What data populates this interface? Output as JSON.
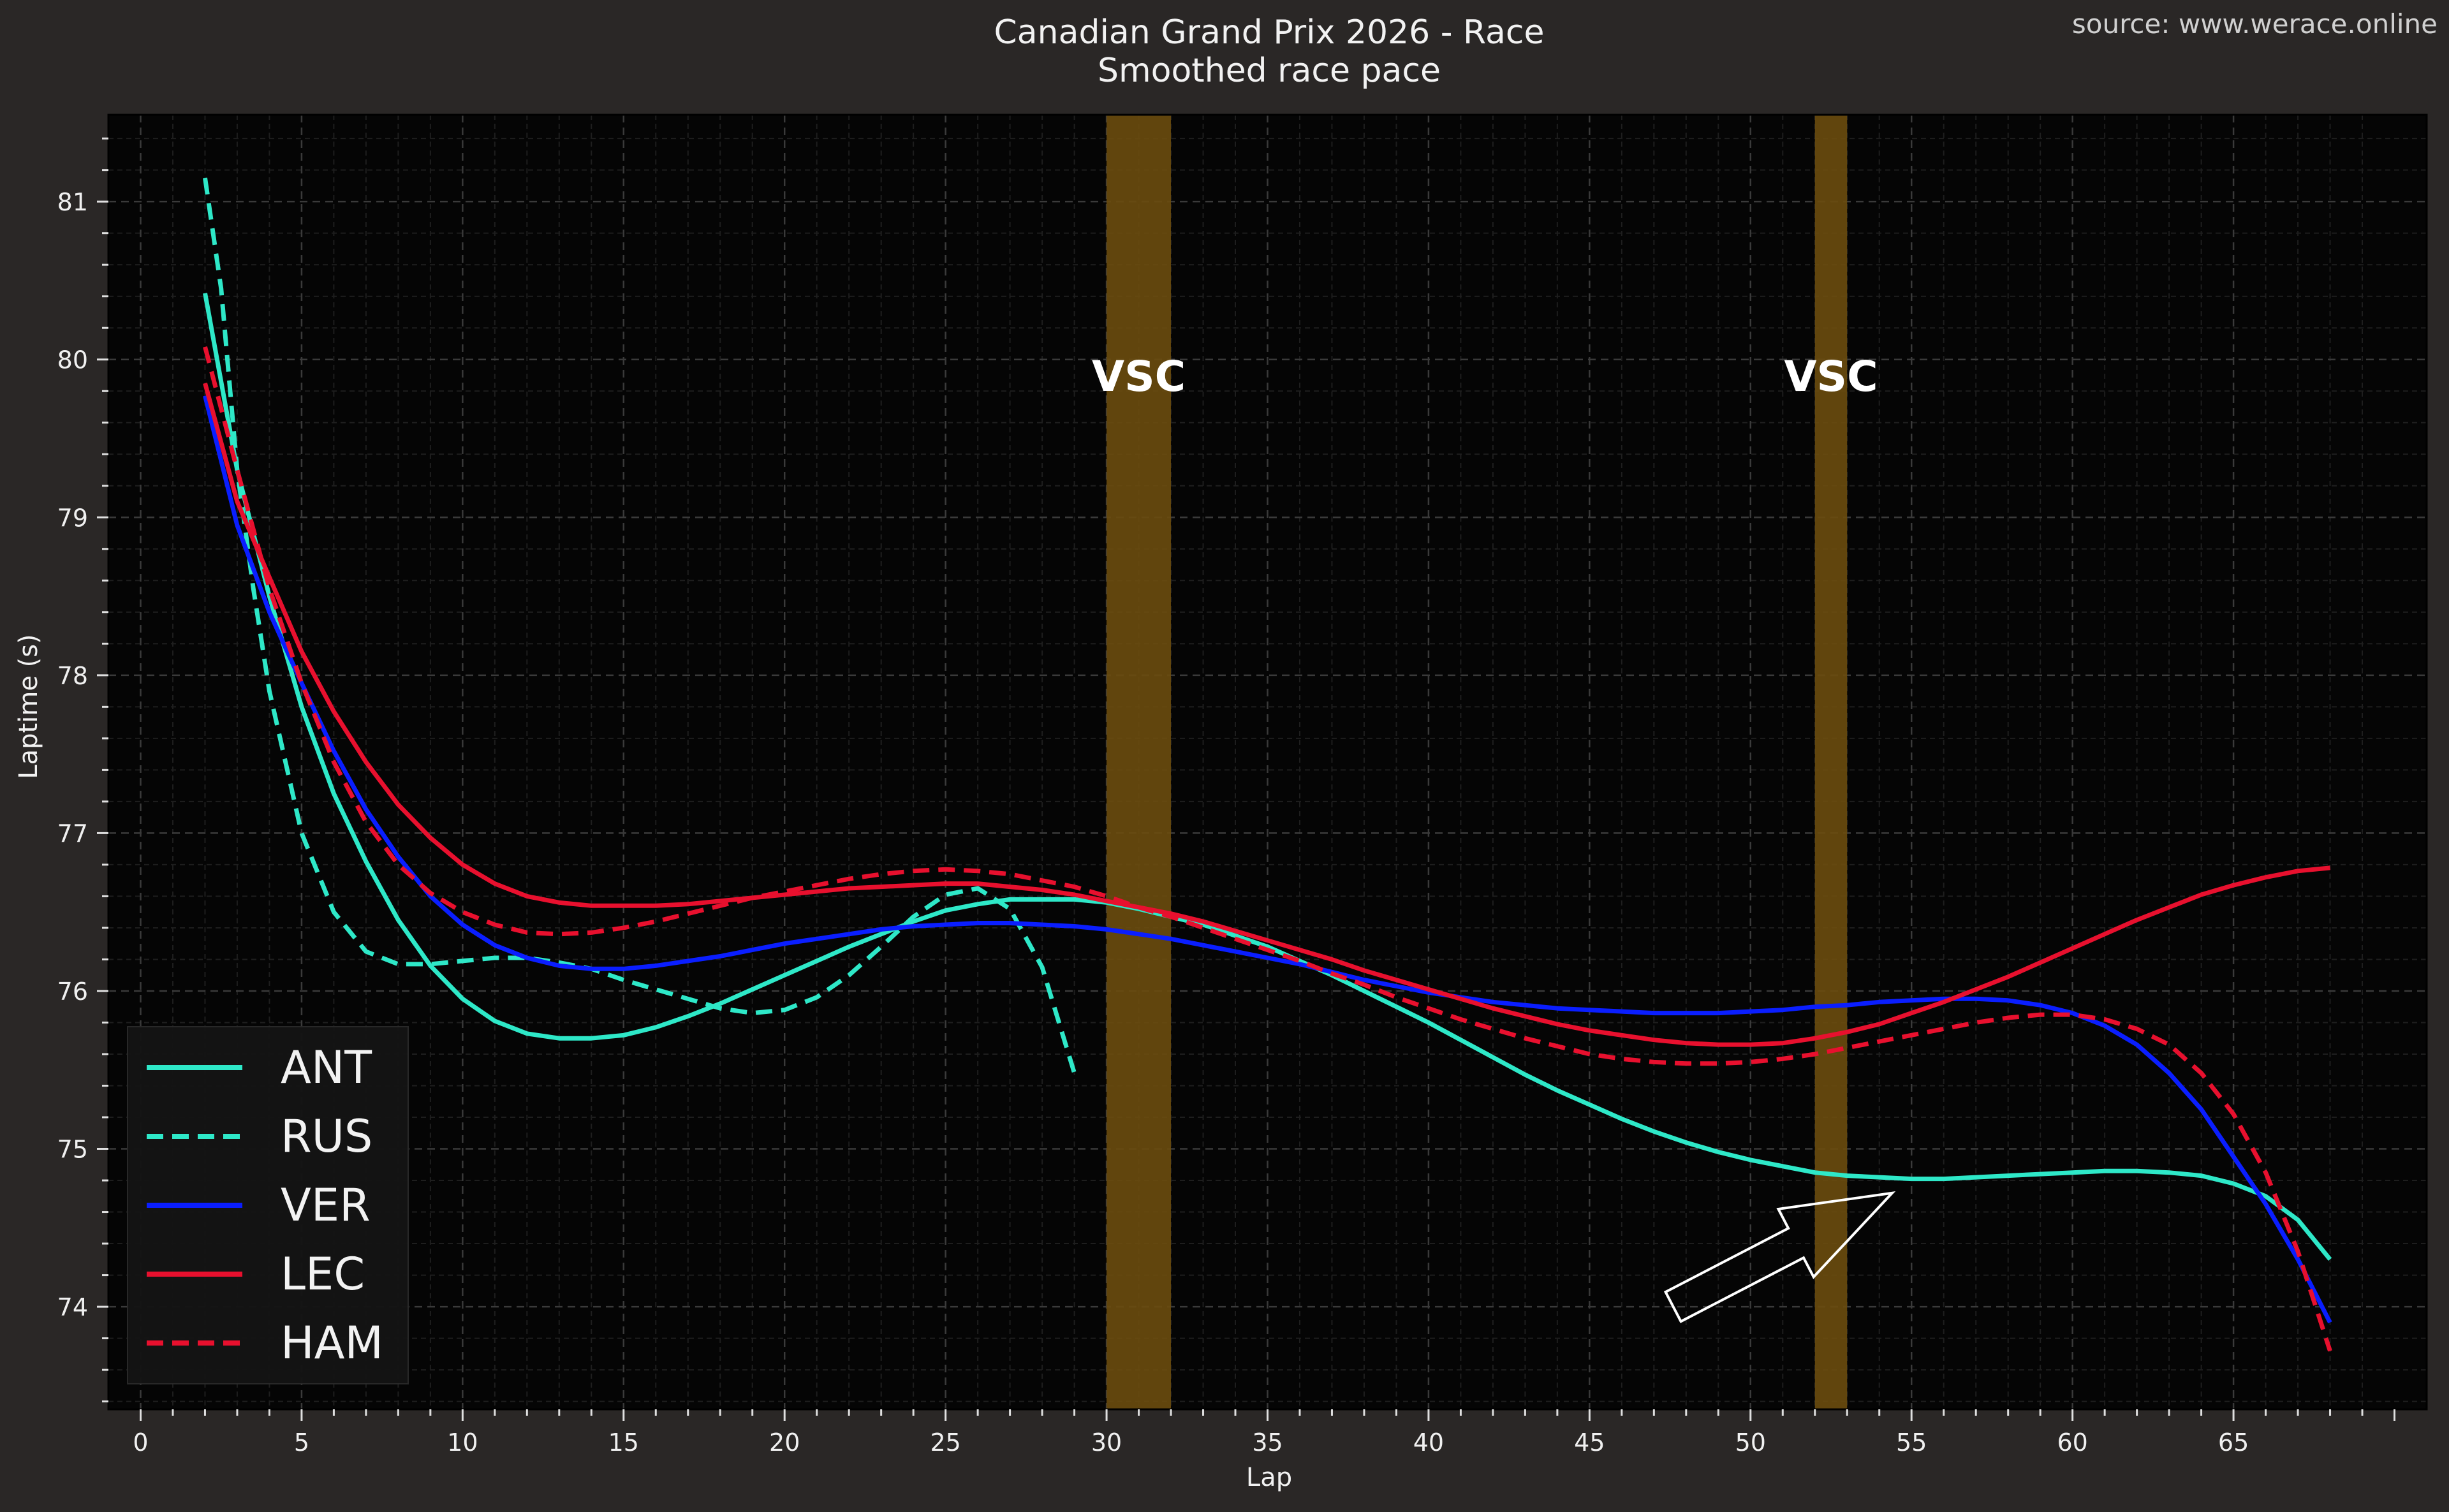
{
  "chart_data": {
    "type": "line",
    "title": "Canadian Grand Prix 2026 - Race",
    "subtitle": "Smoothed race pace",
    "source": "source: www.werace.online",
    "xlabel": "Lap",
    "ylabel": "Laptime (s)",
    "xlim": [
      -1,
      71
    ],
    "ylim": [
      73.35,
      81.55
    ],
    "xticks": [
      0,
      5,
      10,
      15,
      20,
      25,
      30,
      35,
      40,
      45,
      50,
      55,
      60,
      65
    ],
    "yticks": [
      74,
      75,
      76,
      77,
      78,
      79,
      80,
      81
    ],
    "grid": true,
    "legend_position": "lower-left",
    "vsc_periods": [
      {
        "label": "VSC",
        "x_start": 30,
        "x_end": 32
      },
      {
        "label": "VSC",
        "x_start": 52,
        "x_end": 53
      }
    ],
    "annotation": {
      "type": "arrow",
      "from": [
        47.6,
        74.0
      ],
      "to": [
        54.4,
        74.72
      ]
    },
    "colors": {
      "background": "#2a2726",
      "plot_background": "#050505",
      "vsc": "#6b4c0e",
      "grid": "#3a3a3a"
    },
    "series": [
      {
        "name": "ANT",
        "color": "#2ee8c8",
        "dashed": false,
        "x": [
          2,
          3,
          4,
          5,
          6,
          7,
          8,
          9,
          10,
          11,
          12,
          13,
          14,
          15,
          16,
          17,
          18,
          19,
          20,
          21,
          22,
          23,
          24,
          25,
          26,
          27,
          28,
          29,
          30,
          31,
          32,
          33,
          34,
          35,
          36,
          37,
          38,
          39,
          40,
          41,
          42,
          43,
          44,
          45,
          46,
          47,
          48,
          49,
          50,
          51,
          52,
          53,
          54,
          55,
          56,
          57,
          58,
          59,
          60,
          61,
          62,
          63,
          64,
          65,
          66,
          67,
          68
        ],
        "y": [
          80.42,
          79.3,
          78.5,
          77.8,
          77.25,
          76.82,
          76.45,
          76.16,
          75.95,
          75.81,
          75.73,
          75.7,
          75.7,
          75.72,
          75.77,
          75.84,
          75.92,
          76.01,
          76.1,
          76.19,
          76.28,
          76.36,
          76.44,
          76.51,
          76.55,
          76.58,
          76.58,
          76.58,
          76.56,
          76.52,
          76.47,
          76.42,
          76.35,
          76.28,
          76.19,
          76.1,
          76.0,
          75.9,
          75.8,
          75.69,
          75.58,
          75.47,
          75.37,
          75.28,
          75.19,
          75.11,
          75.04,
          74.98,
          74.93,
          74.89,
          74.85,
          74.83,
          74.82,
          74.81,
          74.81,
          74.82,
          74.83,
          74.84,
          74.85,
          74.86,
          74.86,
          74.85,
          74.83,
          74.78,
          74.7,
          74.55,
          74.3
        ]
      },
      {
        "name": "RUS",
        "color": "#2ee8c8",
        "dashed": true,
        "x": [
          2,
          2.5,
          3,
          3.5,
          4,
          5,
          6,
          7,
          8,
          9,
          10,
          11,
          12,
          13,
          14,
          15,
          16,
          17,
          18,
          19,
          20,
          21,
          22,
          23,
          24,
          25,
          26,
          27,
          28,
          29
        ],
        "y": [
          81.15,
          80.45,
          79.3,
          78.55,
          77.9,
          77.0,
          76.5,
          76.25,
          76.17,
          76.17,
          76.19,
          76.21,
          76.21,
          76.18,
          76.14,
          76.07,
          76.01,
          75.95,
          75.89,
          75.86,
          75.88,
          75.96,
          76.1,
          76.28,
          76.47,
          76.61,
          76.65,
          76.52,
          76.15,
          75.48
        ]
      },
      {
        "name": "VER",
        "color": "#0a1eff",
        "dashed": false,
        "x": [
          2,
          3,
          4,
          5,
          6,
          7,
          8,
          9,
          10,
          11,
          12,
          13,
          14,
          15,
          16,
          17,
          18,
          19,
          20,
          21,
          22,
          23,
          24,
          25,
          26,
          27,
          28,
          29,
          30,
          31,
          32,
          33,
          34,
          35,
          36,
          37,
          38,
          39,
          40,
          41,
          42,
          43,
          44,
          45,
          46,
          47,
          48,
          49,
          50,
          51,
          52,
          53,
          54,
          55,
          56,
          57,
          58,
          59,
          60,
          61,
          62,
          63,
          64,
          65,
          66,
          67,
          68
        ],
        "y": [
          79.77,
          78.95,
          78.4,
          77.95,
          77.52,
          77.15,
          76.85,
          76.6,
          76.42,
          76.29,
          76.21,
          76.16,
          76.14,
          76.14,
          76.16,
          76.19,
          76.22,
          76.26,
          76.3,
          76.33,
          76.36,
          76.39,
          76.41,
          76.42,
          76.43,
          76.43,
          76.42,
          76.41,
          76.39,
          76.36,
          76.33,
          76.29,
          76.25,
          76.21,
          76.17,
          76.12,
          76.07,
          76.03,
          75.99,
          75.96,
          75.93,
          75.91,
          75.89,
          75.88,
          75.87,
          75.86,
          75.86,
          75.86,
          75.87,
          75.88,
          75.9,
          75.91,
          75.93,
          75.94,
          75.95,
          75.95,
          75.94,
          75.91,
          75.86,
          75.78,
          75.66,
          75.48,
          75.25,
          74.95,
          74.65,
          74.3,
          73.9
        ]
      },
      {
        "name": "LEC",
        "color": "#e8102e",
        "dashed": false,
        "x": [
          2,
          3,
          4,
          5,
          6,
          7,
          8,
          9,
          10,
          11,
          12,
          13,
          14,
          15,
          16,
          17,
          18,
          19,
          20,
          21,
          22,
          23,
          24,
          25,
          26,
          27,
          28,
          29,
          30,
          31,
          32,
          33,
          34,
          35,
          36,
          37,
          38,
          39,
          40,
          41,
          42,
          43,
          44,
          45,
          46,
          47,
          48,
          49,
          50,
          51,
          52,
          53,
          54,
          55,
          56,
          57,
          58,
          59,
          60,
          61,
          62,
          63,
          64,
          65,
          66,
          67,
          68
        ],
        "y": [
          79.85,
          79.1,
          78.62,
          78.15,
          77.77,
          77.45,
          77.18,
          76.97,
          76.8,
          76.68,
          76.6,
          76.56,
          76.54,
          76.54,
          76.54,
          76.55,
          76.57,
          76.59,
          76.61,
          76.63,
          76.65,
          76.66,
          76.67,
          76.68,
          76.68,
          76.66,
          76.64,
          76.61,
          76.57,
          76.53,
          76.49,
          76.44,
          76.38,
          76.32,
          76.26,
          76.2,
          76.13,
          76.07,
          76.01,
          75.95,
          75.89,
          75.84,
          75.79,
          75.75,
          75.72,
          75.69,
          75.67,
          75.66,
          75.66,
          75.67,
          75.7,
          75.74,
          75.79,
          75.86,
          75.93,
          76.01,
          76.09,
          76.18,
          76.27,
          76.36,
          76.45,
          76.53,
          76.61,
          76.67,
          76.72,
          76.76,
          76.78
        ]
      },
      {
        "name": "HAM",
        "color": "#e8102e",
        "dashed": true,
        "x": [
          2,
          3,
          4,
          5,
          6,
          7,
          8,
          9,
          10,
          11,
          12,
          13,
          14,
          15,
          16,
          17,
          18,
          19,
          20,
          21,
          22,
          23,
          24,
          25,
          26,
          27,
          28,
          29,
          30,
          31,
          32,
          33,
          34,
          35,
          36,
          37,
          38,
          39,
          40,
          41,
          42,
          43,
          44,
          45,
          46,
          47,
          48,
          49,
          50,
          51,
          52,
          53,
          54,
          55,
          56,
          57,
          58,
          59,
          60,
          61,
          62,
          63,
          64,
          65,
          66,
          67,
          68
        ],
        "y": [
          80.08,
          79.3,
          78.55,
          77.95,
          77.45,
          77.07,
          76.8,
          76.62,
          76.5,
          76.42,
          76.37,
          76.36,
          76.37,
          76.4,
          76.44,
          76.49,
          76.54,
          76.59,
          76.63,
          76.67,
          76.71,
          76.74,
          76.76,
          76.77,
          76.76,
          76.74,
          76.7,
          76.66,
          76.6,
          76.53,
          76.47,
          76.4,
          76.33,
          76.26,
          76.19,
          76.11,
          76.04,
          75.96,
          75.89,
          75.82,
          75.76,
          75.7,
          75.65,
          75.6,
          75.57,
          75.55,
          75.54,
          75.54,
          75.55,
          75.57,
          75.6,
          75.64,
          75.68,
          75.72,
          75.76,
          75.8,
          75.83,
          75.85,
          75.85,
          75.82,
          75.76,
          75.66,
          75.48,
          75.22,
          74.85,
          74.35,
          73.72
        ]
      }
    ]
  }
}
